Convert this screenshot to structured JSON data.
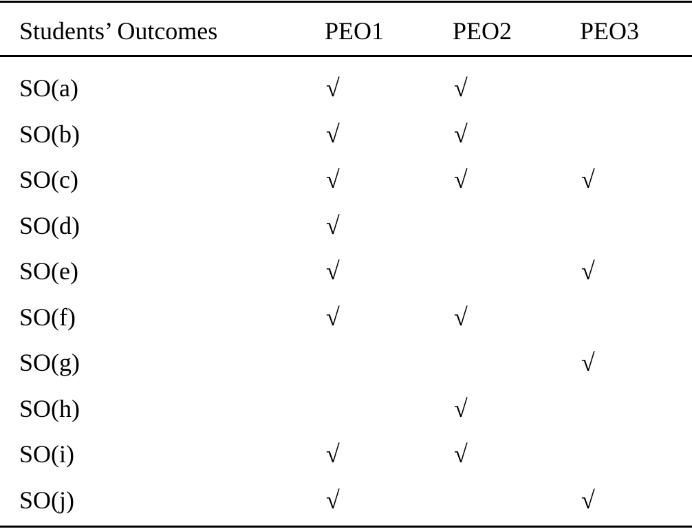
{
  "table": {
    "header": [
      "Students’ Outcomes",
      "PEO1",
      "PEO2",
      "PEO3"
    ],
    "rows": [
      [
        "SO(a)",
        "√",
        "√",
        null
      ],
      [
        "SO(b)",
        "√",
        "√",
        null
      ],
      [
        "SO(c)",
        "√",
        "√",
        "√"
      ],
      [
        "SO(d)",
        "√",
        null,
        null
      ],
      [
        "SO(e)",
        "√",
        null,
        "√"
      ],
      [
        "SO(f)",
        "√",
        "√",
        null
      ],
      [
        "SO(g)",
        null,
        null,
        "√"
      ],
      [
        "SO(h)",
        null,
        "√",
        null
      ],
      [
        "SO(i)",
        "√",
        "√",
        null
      ],
      [
        "SO(j)",
        "√",
        null,
        "√"
      ]
    ]
  }
}
